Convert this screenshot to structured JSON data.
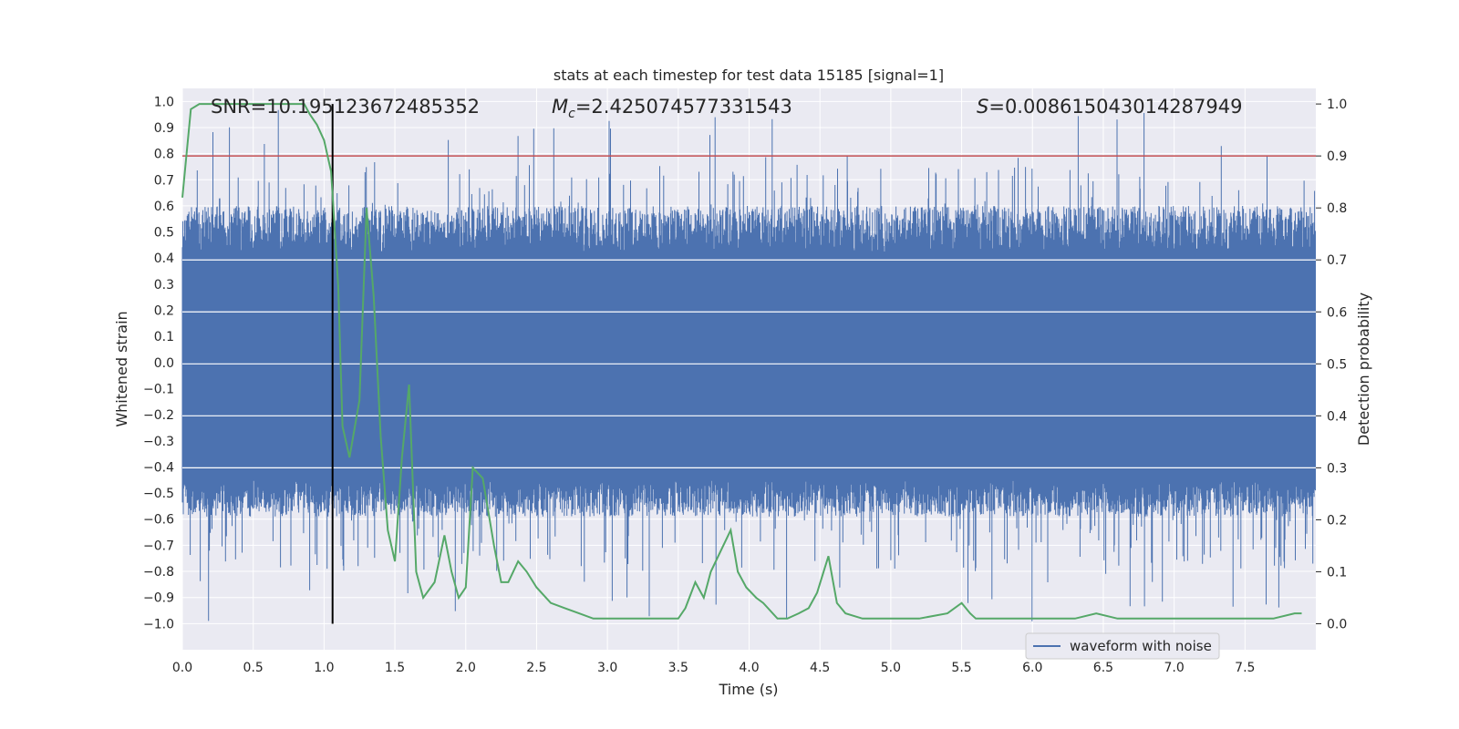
{
  "chart_data": {
    "type": "line",
    "title": "stats at each timestep for test data 15185 [signal=1]",
    "xlabel": "Time (s)",
    "ylabel": "Whitened strain",
    "ylabel_right": "Detection probability",
    "xlim": [
      0.0,
      8.0
    ],
    "ylim": [
      -1.1,
      1.05
    ],
    "ylim_right": [
      -0.05,
      1.03
    ],
    "x_ticks": [
      "0.0",
      "0.5",
      "1.0",
      "1.5",
      "2.0",
      "2.5",
      "3.0",
      "3.5",
      "4.0",
      "4.5",
      "5.0",
      "5.5",
      "6.0",
      "6.5",
      "7.0",
      "7.5"
    ],
    "y_ticks": [
      "1.0",
      "0.9",
      "0.8",
      "0.7",
      "0.6",
      "0.5",
      "0.4",
      "0.3",
      "0.2",
      "0.1",
      "0.0",
      "-0.1",
      "-0.2",
      "-0.3",
      "-0.4",
      "-0.5",
      "-0.6",
      "-0.7",
      "-0.8",
      "-0.9",
      "-1.0"
    ],
    "y_ticks_right": [
      "1.0",
      "0.9",
      "0.8",
      "0.7",
      "0.6",
      "0.5",
      "0.4",
      "0.3",
      "0.2",
      "0.1",
      "0.0"
    ],
    "grid": true,
    "legend": {
      "position": "bottom-right",
      "entries": [
        "waveform with noise"
      ]
    },
    "annotations": {
      "snr": "SNR=10.195123672485352",
      "mc_symbol": "M",
      "mc_sub": "c",
      "mc_value": "=2.425074577331543",
      "s_symbol": "S",
      "s_value": "=0.008615043014287949"
    },
    "threshold_right": 0.9,
    "event_time": 1.06,
    "waveform_envelope": {
      "core_low": -0.45,
      "core_high": 0.42,
      "peak_max": 0.97,
      "peak_min": -1.0
    },
    "series": [
      {
        "name": "waveform with noise",
        "color": "#4c72b0"
      },
      {
        "color": "#55a868",
        "x": [
          0.0,
          0.06,
          0.12,
          0.2,
          0.3,
          0.4,
          0.5,
          0.6,
          0.7,
          0.8,
          0.86,
          0.9,
          0.95,
          1.0,
          1.05,
          1.1,
          1.13,
          1.18,
          1.25,
          1.3,
          1.35,
          1.4,
          1.45,
          1.5,
          1.55,
          1.6,
          1.65,
          1.7,
          1.78,
          1.85,
          1.9,
          1.95,
          2.0,
          2.05,
          2.12,
          2.2,
          2.25,
          2.3,
          2.37,
          2.43,
          2.5,
          2.6,
          2.7,
          2.8,
          2.9,
          3.0,
          3.1,
          3.2,
          3.3,
          3.4,
          3.5,
          3.55,
          3.62,
          3.68,
          3.73,
          3.8,
          3.87,
          3.92,
          3.98,
          4.05,
          4.1,
          4.2,
          4.27,
          4.35,
          4.42,
          4.48,
          4.56,
          4.62,
          4.68,
          4.8,
          4.9,
          5.0,
          5.2,
          5.4,
          5.5,
          5.56,
          5.6,
          5.7,
          6.0,
          6.3,
          6.45,
          6.6,
          6.8,
          7.0,
          7.3,
          7.5,
          7.7,
          7.85,
          7.9
        ],
        "values": [
          0.82,
          0.99,
          1.0,
          1.0,
          1.0,
          1.0,
          1.0,
          1.0,
          1.0,
          1.0,
          1.0,
          0.98,
          0.96,
          0.93,
          0.87,
          0.65,
          0.38,
          0.32,
          0.43,
          0.8,
          0.63,
          0.36,
          0.18,
          0.12,
          0.32,
          0.46,
          0.1,
          0.05,
          0.08,
          0.17,
          0.1,
          0.05,
          0.07,
          0.3,
          0.28,
          0.15,
          0.08,
          0.08,
          0.12,
          0.1,
          0.07,
          0.04,
          0.03,
          0.02,
          0.01,
          0.01,
          0.01,
          0.01,
          0.01,
          0.01,
          0.01,
          0.03,
          0.08,
          0.05,
          0.1,
          0.14,
          0.18,
          0.1,
          0.07,
          0.05,
          0.04,
          0.01,
          0.01,
          0.02,
          0.03,
          0.06,
          0.13,
          0.04,
          0.02,
          0.01,
          0.01,
          0.01,
          0.01,
          0.02,
          0.04,
          0.02,
          0.01,
          0.01,
          0.01,
          0.01,
          0.02,
          0.01,
          0.01,
          0.01,
          0.01,
          0.01,
          0.01,
          0.02,
          0.02
        ]
      },
      {
        "color": "#c44e52"
      }
    ]
  }
}
